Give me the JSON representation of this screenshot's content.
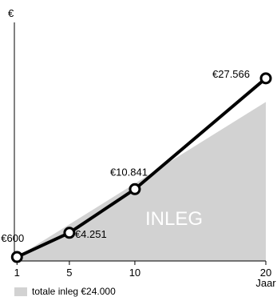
{
  "chart_data": {
    "type": "line",
    "ylabel": "€",
    "xlabel": "Jaar",
    "x_ticks": [
      1,
      5,
      10,
      20
    ],
    "xlim": [
      0.8,
      20
    ],
    "ylim": [
      0,
      36000
    ],
    "grid": false,
    "series": [
      {
        "name": "",
        "x": [
          1,
          5,
          10,
          20
        ],
        "y": [
          600,
          4251,
          10841,
          27566
        ],
        "labels": [
          "€600",
          "€4.251",
          "€10.841",
          "€27.566"
        ],
        "color": "#000000"
      }
    ],
    "area": {
      "label": "INLEG",
      "x": [
        1,
        20
      ],
      "y": [
        600,
        24000
      ],
      "color": "#d2d2d2"
    },
    "legend": {
      "placement": "bottom-left",
      "text": "totale inleg €24.000"
    }
  }
}
